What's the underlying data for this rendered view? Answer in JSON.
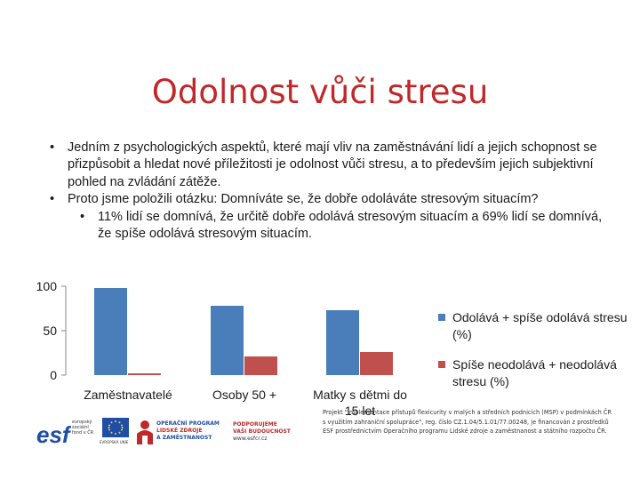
{
  "slide": {
    "title": "Odolnost vůči stresu",
    "bullets": [
      {
        "text": "Jedním z psychologických aspektů, které mají vliv na zaměstnávání lidí a jejich schopnost se přizpůsobit a hledat nové příležitosti je odolnost vůči stresu, a to především jejich subjektivní pohled na zvládání zátěže."
      },
      {
        "text": "Proto jsme položili otázku: Domníváte se, že dobře odoláváte stresovým situacím?"
      }
    ],
    "sub_bullet": "11% lidí se domnívá, že určitě dobře odolává stresovým situacím a 69% lidí se domnívá, že spíše odolává stresovým situacím.",
    "bullet_char": "•"
  },
  "chart_data": {
    "type": "bar",
    "categories": [
      "Zaměstnavatelé",
      "Osoby 50 +",
      "Matky s dětmi do 15 let"
    ],
    "series": [
      {
        "name": "Odolává + spíše odolává stresu (%)",
        "values": [
          98,
          78,
          73
        ],
        "color": "#4a7ebb"
      },
      {
        "name": "Spíše neodolává + neodolává stresu (%)",
        "values": [
          2,
          21,
          26
        ],
        "color": "#c0504d"
      }
    ],
    "y_ticks": [
      "100",
      "50",
      "0"
    ],
    "ylim": [
      0,
      100
    ],
    "grid": false,
    "legend_position": "right"
  },
  "footer": {
    "logos": {
      "esf_caption": "evropský sociální fond v ČR",
      "eu_caption": "EVROPSKÁ UNIE",
      "op_line1": "OPERAČNÍ PROGRAM",
      "op_line2": "LIDSKÉ ZDROJE",
      "op_line3": "A ZAMĚSTNANOST",
      "support_line1": "PODPORUJEME",
      "support_line2": "VAŠI BUDOUCNOST",
      "support_url": "www.esfcr.cz"
    },
    "note": "Projekt \"Implementace přístupů flexicurity v malých a středních podnicích (MSP) v podmínkách ČR s využitím zahraniční spolupráce\", reg. číslo CZ.1.04/5.1.01/77.00248, je financován z prostředků ESF prostřednictvím Operačního programu Lidské zdroje a zaměstnanost a státního rozpočtu ČR."
  }
}
